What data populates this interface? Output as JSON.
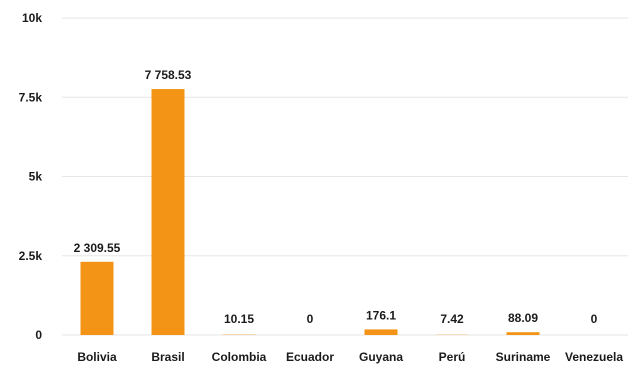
{
  "chart_data": {
    "type": "bar",
    "categories": [
      "Bolivia",
      "Brasil",
      "Colombia",
      "Ecuador",
      "Guyana",
      "Perú",
      "Suriname",
      "Venezuela"
    ],
    "values": [
      2309.55,
      7758.53,
      10.15,
      0,
      176.1,
      7.42,
      88.09,
      0
    ],
    "value_labels": [
      "2 309.55",
      "7 758.53",
      "10.15",
      "0",
      "176.1",
      "7.42",
      "88.09",
      "0"
    ],
    "yticks": [
      0,
      2500,
      5000,
      7500,
      10000
    ],
    "ytick_labels": [
      "0",
      "2.5k",
      "5k",
      "7.5k",
      "10k"
    ],
    "ylim": [
      0,
      10000
    ],
    "grid": true,
    "legend": "none",
    "bar_color": "#f39416"
  }
}
